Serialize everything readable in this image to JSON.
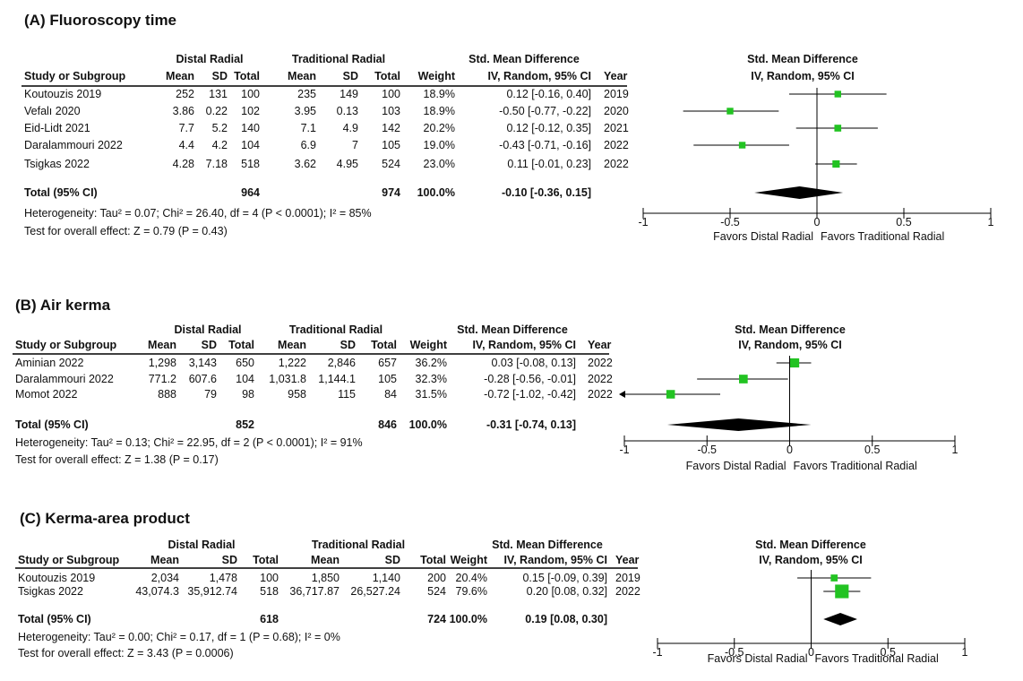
{
  "chart_data": [
    {
      "type": "forest",
      "title": "(A) Fluoroscopy time",
      "group_headers": [
        "Distal Radial",
        "Traditional Radial",
        "Std. Mean Difference",
        "Std. Mean Difference"
      ],
      "columns": [
        "Study or Subgroup",
        "Mean",
        "SD",
        "Total",
        "Mean",
        "SD",
        "Total",
        "Weight",
        "IV, Random, 95% CI",
        "Year"
      ],
      "plot_header": "IV, Random, 95% CI",
      "rows": [
        {
          "study": "Koutouzis 2019",
          "m1": "252",
          "sd1": "131",
          "n1": "100",
          "m2": "235",
          "sd2": "149",
          "n2": "100",
          "weight": "18.9%",
          "ci_text": "0.12 [-0.16, 0.40]",
          "year": "2019",
          "est": 0.12,
          "lo": -0.16,
          "hi": 0.4,
          "w": 18.9
        },
        {
          "study": "Vefalı 2020",
          "m1": "3.86",
          "sd1": "0.22",
          "n1": "102",
          "m2": "3.95",
          "sd2": "0.13",
          "n2": "103",
          "weight": "18.9%",
          "ci_text": "-0.50 [-0.77, -0.22]",
          "year": "2020",
          "est": -0.5,
          "lo": -0.77,
          "hi": -0.22,
          "w": 18.9
        },
        {
          "study": "Eid-Lidt 2021",
          "m1": "7.7",
          "sd1": "5.2",
          "n1": "140",
          "m2": "7.1",
          "sd2": "4.9",
          "n2": "142",
          "weight": "20.2%",
          "ci_text": "0.12 [-0.12, 0.35]",
          "year": "2021",
          "est": 0.12,
          "lo": -0.12,
          "hi": 0.35,
          "w": 20.2
        },
        {
          "study": "Daralammouri 2022",
          "m1": "4.4",
          "sd1": "4.2",
          "n1": "104",
          "m2": "6.9",
          "sd2": "7",
          "n2": "105",
          "weight": "19.0%",
          "ci_text": "-0.43 [-0.71, -0.16]",
          "year": "2022",
          "est": -0.43,
          "lo": -0.71,
          "hi": -0.16,
          "w": 19.0
        },
        {
          "study": "Tsigkas 2022",
          "m1": "4.28",
          "sd1": "7.18",
          "n1": "518",
          "m2": "3.62",
          "sd2": "4.95",
          "n2": "524",
          "weight": "23.0%",
          "ci_text": "0.11 [-0.01, 0.23]",
          "year": "2022",
          "est": 0.11,
          "lo": -0.01,
          "hi": 0.23,
          "w": 23.0
        }
      ],
      "total": {
        "label": "Total (95% CI)",
        "n1": "964",
        "n2": "974",
        "weight": "100.0%",
        "ci_text": "-0.10 [-0.36, 0.15]",
        "est": -0.1,
        "lo": -0.36,
        "hi": 0.15
      },
      "heterogeneity": "Heterogeneity: Tau² = 0.07; Chi² = 26.40, df = 4 (P < 0.0001); I² = 85%",
      "overall": "Test for overall effect: Z = 0.79 (P = 0.43)",
      "xlim": [
        -1,
        1
      ],
      "ticks": [
        "-1",
        "-0.5",
        "0",
        "0.5",
        "1"
      ],
      "favors": [
        "Favors Distal Radial",
        "Favors Traditional Radial"
      ]
    },
    {
      "type": "forest",
      "title": "(B) Air kerma",
      "group_headers": [
        "Distal Radial",
        "Traditional Radial",
        "Std. Mean Difference",
        "Std. Mean Difference"
      ],
      "columns": [
        "Study or Subgroup",
        "Mean",
        "SD",
        "Total",
        "Mean",
        "SD",
        "Total",
        "Weight",
        "IV, Random, 95% CI",
        "Year"
      ],
      "plot_header": "IV, Random, 95% CI",
      "rows": [
        {
          "study": "Aminian 2022",
          "m1": "1,298",
          "sd1": "3,143",
          "n1": "650",
          "m2": "1,222",
          "sd2": "2,846",
          "n2": "657",
          "weight": "36.2%",
          "ci_text": "0.03 [-0.08, 0.13]",
          "year": "2022",
          "est": 0.03,
          "lo": -0.08,
          "hi": 0.13,
          "w": 36.2
        },
        {
          "study": "Daralammouri 2022",
          "m1": "771.2",
          "sd1": "607.6",
          "n1": "104",
          "m2": "1,031.8",
          "sd2": "1,144.1",
          "n2": "105",
          "weight": "32.3%",
          "ci_text": "-0.28 [-0.56, -0.01]",
          "year": "2022",
          "est": -0.28,
          "lo": -0.56,
          "hi": -0.01,
          "w": 32.3
        },
        {
          "study": "Momot 2022",
          "m1": "888",
          "sd1": "79",
          "n1": "98",
          "m2": "958",
          "sd2": "115",
          "n2": "84",
          "weight": "31.5%",
          "ci_text": "-0.72 [-1.02, -0.42]",
          "year": "2022",
          "est": -0.72,
          "lo": -1.02,
          "hi": -0.42,
          "w": 31.5
        }
      ],
      "total": {
        "label": "Total (95% CI)",
        "n1": "852",
        "n2": "846",
        "weight": "100.0%",
        "ci_text": "-0.31 [-0.74, 0.13]",
        "est": -0.31,
        "lo": -0.74,
        "hi": 0.13
      },
      "heterogeneity": "Heterogeneity: Tau² = 0.13; Chi² = 22.95, df = 2 (P < 0.0001); I² = 91%",
      "overall": "Test for overall effect: Z = 1.38 (P = 0.17)",
      "xlim": [
        -1,
        1
      ],
      "ticks": [
        "-1",
        "-0.5",
        "0",
        "0.5",
        "1"
      ],
      "favors": [
        "Favors Distal Radial",
        "Favors Traditional Radial"
      ]
    },
    {
      "type": "forest",
      "title": "(C) Kerma-area product",
      "group_headers": [
        "Distal Radial",
        "Traditional Radial",
        "Std. Mean Difference",
        "Std. Mean Difference"
      ],
      "columns": [
        "Study or Subgroup",
        "Mean",
        "SD",
        "Total",
        "Mean",
        "SD",
        "Total",
        "Weight",
        "IV, Random, 95% CI",
        "Year"
      ],
      "plot_header": "IV, Random, 95% CI",
      "rows": [
        {
          "study": "Koutouzis 2019",
          "m1": "2,034",
          "sd1": "1,478",
          "n1": "100",
          "m2": "1,850",
          "sd2": "1,140",
          "n2": "200",
          "weight": "20.4%",
          "ci_text": "0.15 [-0.09, 0.39]",
          "year": "2019",
          "est": 0.15,
          "lo": -0.09,
          "hi": 0.39,
          "w": 20.4
        },
        {
          "study": "Tsigkas 2022",
          "m1": "43,074.3",
          "sd1": "35,912.74",
          "n1": "518",
          "m2": "36,717.87",
          "sd2": "26,527.24",
          "n2": "524",
          "weight": "79.6%",
          "ci_text": "0.20 [0.08, 0.32]",
          "year": "2022",
          "est": 0.2,
          "lo": 0.08,
          "hi": 0.32,
          "w": 79.6
        }
      ],
      "total": {
        "label": "Total (95% CI)",
        "n1": "618",
        "n2": "724",
        "weight": "100.0%",
        "ci_text": "0.19 [0.08, 0.30]",
        "est": 0.19,
        "lo": 0.08,
        "hi": 0.3
      },
      "heterogeneity": "Heterogeneity: Tau² = 0.00; Chi² = 0.17, df = 1 (P = 0.68); I² = 0%",
      "overall": "Test for overall effect: Z = 3.43 (P = 0.0006)",
      "xlim": [
        -1,
        1
      ],
      "ticks": [
        "-1",
        "-0.5",
        "0",
        "0.5",
        "1"
      ],
      "favors": [
        "Favors Distal Radial",
        "Favors Traditional Radial"
      ]
    }
  ],
  "colors": {
    "marker": "#22c322",
    "diamond": "#000000",
    "line": "#000000"
  }
}
